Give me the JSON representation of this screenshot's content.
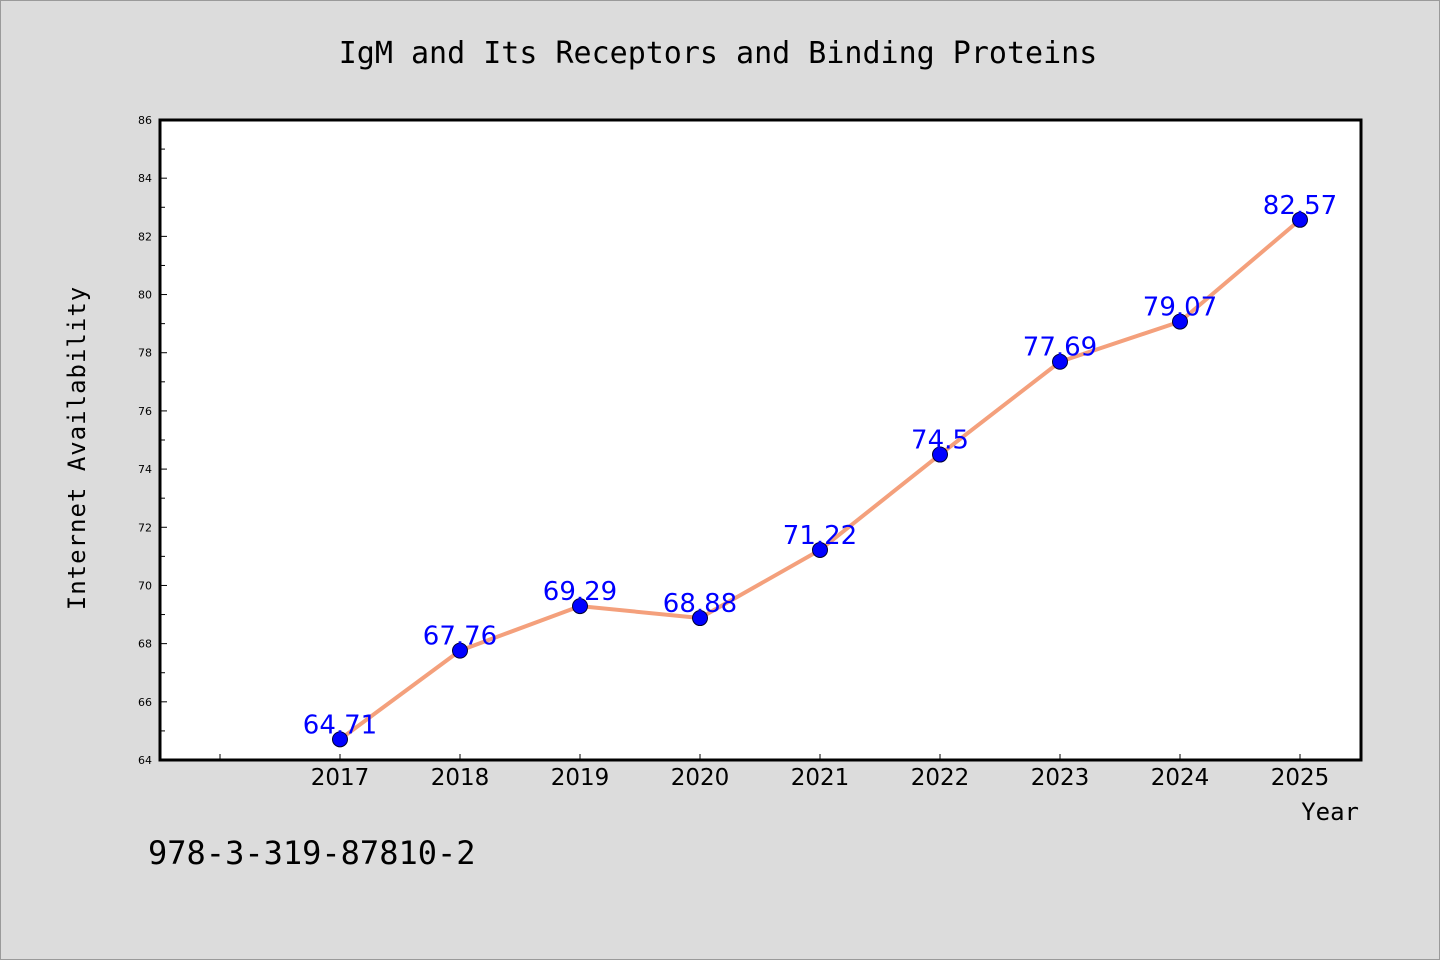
{
  "chart_data": {
    "type": "line",
    "title": "IgM and Its Receptors and Binding Proteins",
    "xlabel": "Year",
    "ylabel": "Internet Availability",
    "x": [
      "2017",
      "2018",
      "2019",
      "2020",
      "2021",
      "2022",
      "2023",
      "2024",
      "2025"
    ],
    "values": [
      64.71,
      67.76,
      69.29,
      68.88,
      71.22,
      74.5,
      77.69,
      79.07,
      82.57
    ],
    "data_labels": [
      "64.71",
      "67.76",
      "69.29",
      "68.88",
      "71.22",
      "74.5",
      "77.69",
      "79.07",
      "82.57"
    ],
    "yticks": [
      "64",
      "66",
      "68",
      "70",
      "72",
      "74",
      "76",
      "78",
      "80",
      "82",
      "84",
      "86"
    ],
    "ylim": [
      64,
      86
    ],
    "grid": false,
    "legend": "none",
    "colors": {
      "line": "#f4a07c",
      "marker": "#0000ff",
      "label": "#0000ff",
      "background": "#dcdcdc",
      "plot_area": "#ffffff"
    }
  },
  "footnote": "978-3-319-87810-2"
}
